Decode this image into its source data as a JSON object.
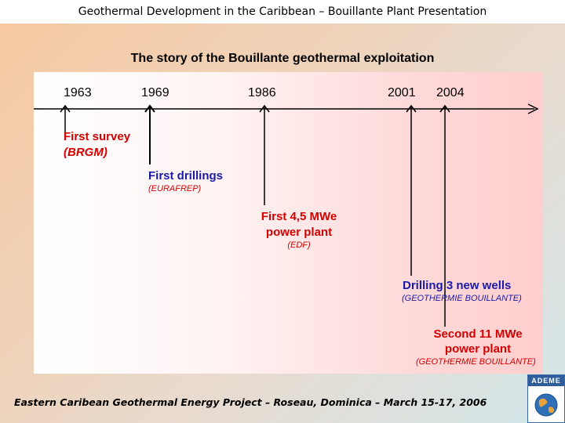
{
  "header": {
    "title": "Geothermal Development in the Caribbean – Bouillante Plant Presentation"
  },
  "slide": {
    "title": "The story of the Bouillante geothermal exploitation"
  },
  "timeline": {
    "years": [
      "1963",
      "1969",
      "1986",
      "2001",
      "2004"
    ],
    "events": [
      {
        "label_line1": "First survey",
        "label_line2": "",
        "sub": "(BRGM)",
        "color": "#d40000"
      },
      {
        "label_line1": "First drillings",
        "label_line2": "",
        "sub": "(EURAFREP)",
        "color": "#1a1aa8"
      },
      {
        "label_line1": "First 4,5 MWe",
        "label_line2": "power plant",
        "sub": "(EDF)",
        "color": "#d40000"
      },
      {
        "label_line1": "Drilling 3 new wells",
        "label_line2": "",
        "sub": "(GEOTHERMIE BOUILLANTE)",
        "color": "#1a1aa8"
      },
      {
        "label_line1": "Second 11 MWe",
        "label_line2": "power plant",
        "sub": "(GEOTHERMIE BOUILLANTE)",
        "color": "#d40000"
      }
    ]
  },
  "footer": {
    "text": "Eastern Caribean Geothermal Energy Project – Roseau, Dominica – March 15-17, 2006"
  },
  "logo": {
    "text": "ADEME",
    "icon": "globe-icon"
  }
}
